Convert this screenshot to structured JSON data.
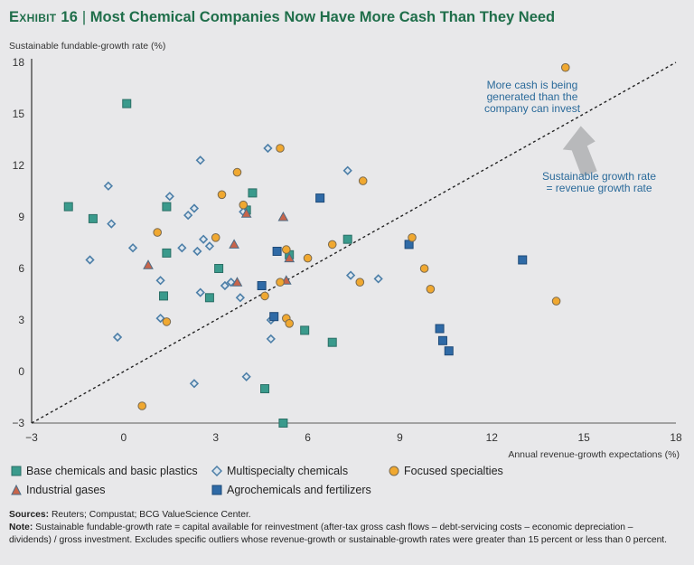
{
  "header": {
    "exhibit": "Exhibit 16",
    "separator": "|",
    "title": "Most Chemical Companies Now Have More Cash Than They Need"
  },
  "chart_data": {
    "type": "scatter",
    "title": "Most Chemical Companies Now Have More Cash Than They Need",
    "xlabel": "Annual revenue-growth expectations (%)",
    "ylabel": "Sustainable fundable-growth rate (%)",
    "xlim": [
      -3,
      18
    ],
    "ylim": [
      -3,
      18
    ],
    "xticks": [
      -3,
      0,
      3,
      6,
      9,
      12,
      15,
      18
    ],
    "yticks": [
      -3,
      0,
      3,
      6,
      9,
      12,
      15,
      18
    ],
    "grid": false,
    "reference_line": {
      "label": "Sustainable growth rate = revenue growth rate",
      "from": [
        -3,
        -3
      ],
      "to": [
        18,
        18
      ],
      "style": "dotted"
    },
    "annotations": [
      {
        "text": "More cash is being generated than the company can invest",
        "lines": [
          "More cash is being",
          "generated than the",
          "company can invest"
        ]
      },
      {
        "text": "Sustainable growth rate = revenue growth rate",
        "lines": [
          "Sustainable growth rate",
          "= revenue growth rate"
        ]
      }
    ],
    "legend_position": "bottom",
    "series": [
      {
        "name": "Base chemicals and basic plastics",
        "marker": "square",
        "color": "#3a9a8c",
        "points": [
          [
            -1.8,
            9.6
          ],
          [
            -1.0,
            8.9
          ],
          [
            0.1,
            15.6
          ],
          [
            1.4,
            9.6
          ],
          [
            1.4,
            6.9
          ],
          [
            1.3,
            4.4
          ],
          [
            3.1,
            6.0
          ],
          [
            2.8,
            4.3
          ],
          [
            4.0,
            9.4
          ],
          [
            4.2,
            10.4
          ],
          [
            7.3,
            7.7
          ],
          [
            5.9,
            2.4
          ],
          [
            6.8,
            1.7
          ],
          [
            4.6,
            -1.0
          ],
          [
            5.2,
            -3.0
          ],
          [
            5.4,
            6.8
          ]
        ]
      },
      {
        "name": "Multispecialty chemicals",
        "marker": "diamond",
        "color": "#4d7fa8",
        "points": [
          [
            -0.5,
            10.8
          ],
          [
            -0.4,
            8.6
          ],
          [
            -1.1,
            6.5
          ],
          [
            0.3,
            7.2
          ],
          [
            1.5,
            10.2
          ],
          [
            1.2,
            5.3
          ],
          [
            1.2,
            3.1
          ],
          [
            -0.2,
            2.0
          ],
          [
            2.5,
            12.3
          ],
          [
            2.3,
            9.5
          ],
          [
            2.1,
            9.1
          ],
          [
            1.9,
            7.2
          ],
          [
            2.4,
            7.0
          ],
          [
            2.8,
            7.3
          ],
          [
            2.6,
            7.7
          ],
          [
            2.5,
            4.6
          ],
          [
            3.3,
            5.0
          ],
          [
            3.5,
            5.2
          ],
          [
            3.8,
            4.3
          ],
          [
            4.7,
            13.0
          ],
          [
            4.8,
            3.0
          ],
          [
            4.8,
            1.9
          ],
          [
            7.3,
            11.7
          ],
          [
            7.4,
            5.6
          ],
          [
            8.3,
            5.4
          ],
          [
            4.0,
            -0.3
          ],
          [
            2.3,
            -0.7
          ],
          [
            3.9,
            9.3
          ]
        ]
      },
      {
        "name": "Focused specialties",
        "marker": "circle",
        "color": "#f0a830",
        "points": [
          [
            5.1,
            13.0
          ],
          [
            3.7,
            11.6
          ],
          [
            3.2,
            10.3
          ],
          [
            3.9,
            9.7
          ],
          [
            7.8,
            11.1
          ],
          [
            1.1,
            8.1
          ],
          [
            3.0,
            7.8
          ],
          [
            1.4,
            2.9
          ],
          [
            0.6,
            -2.0
          ],
          [
            5.3,
            7.1
          ],
          [
            5.3,
            3.1
          ],
          [
            5.4,
            2.8
          ],
          [
            4.6,
            4.4
          ],
          [
            5.1,
            5.2
          ],
          [
            6.0,
            6.6
          ],
          [
            6.8,
            7.4
          ],
          [
            9.4,
            7.8
          ],
          [
            9.8,
            6.0
          ],
          [
            10.0,
            4.8
          ],
          [
            7.7,
            5.2
          ],
          [
            14.1,
            4.1
          ],
          [
            14.4,
            17.7
          ]
        ]
      },
      {
        "name": "Industrial gases",
        "marker": "triangle",
        "color": "#c8644a",
        "points": [
          [
            0.8,
            6.2
          ],
          [
            3.6,
            7.4
          ],
          [
            4.0,
            9.2
          ],
          [
            5.2,
            9.0
          ],
          [
            3.7,
            5.2
          ],
          [
            5.3,
            5.3
          ],
          [
            5.4,
            6.6
          ]
        ]
      },
      {
        "name": "Agrochemicals and fertilizers",
        "marker": "square",
        "color": "#2f6aa6",
        "points": [
          [
            6.4,
            10.1
          ],
          [
            5.0,
            7.0
          ],
          [
            4.5,
            5.0
          ],
          [
            4.9,
            3.2
          ],
          [
            9.3,
            7.4
          ],
          [
            13.0,
            6.5
          ],
          [
            10.3,
            2.5
          ],
          [
            10.4,
            1.8
          ],
          [
            10.6,
            1.2
          ]
        ]
      }
    ]
  },
  "legend": {
    "items": [
      {
        "label": "Base chemicals and basic plastics"
      },
      {
        "label": "Multispecialty chemicals"
      },
      {
        "label": "Focused specialties"
      },
      {
        "label": "Industrial gases"
      },
      {
        "label": "Agrochemicals and fertilizers"
      }
    ]
  },
  "footer": {
    "sources_label": "Sources:",
    "sources_text": " Reuters; Compustat; BCG ValueScience Center.",
    "note_label": "Note:",
    "note_text": " Sustainable fundable-growth rate = capital available for reinvestment (after-tax gross cash flows – debt-servicing costs – economic depreciation – dividends) / gross investment. Excludes specific outliers whose revenue-growth or sustainable-growth rates were greater than 15 percent or less than 0 percent."
  }
}
